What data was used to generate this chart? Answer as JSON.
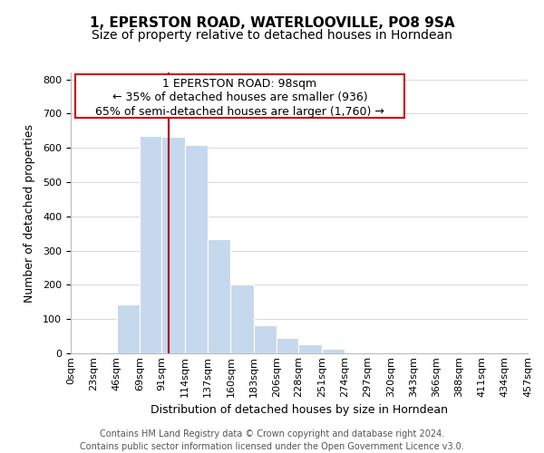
{
  "title": "1, EPERSTON ROAD, WATERLOOVILLE, PO8 9SA",
  "subtitle": "Size of property relative to detached houses in Horndean",
  "xlabel": "Distribution of detached houses by size in Horndean",
  "ylabel": "Number of detached properties",
  "bin_edges": [
    0,
    23,
    46,
    69,
    91,
    114,
    137,
    160,
    183,
    206,
    228,
    251,
    274,
    297,
    320,
    343,
    366,
    388,
    411,
    434,
    457
  ],
  "bin_labels": [
    "0sqm",
    "23sqm",
    "46sqm",
    "69sqm",
    "91sqm",
    "114sqm",
    "137sqm",
    "160sqm",
    "183sqm",
    "206sqm",
    "228sqm",
    "251sqm",
    "274sqm",
    "297sqm",
    "320sqm",
    "343sqm",
    "366sqm",
    "388sqm",
    "411sqm",
    "434sqm",
    "457sqm"
  ],
  "counts": [
    2,
    0,
    143,
    635,
    632,
    608,
    332,
    200,
    83,
    45,
    27,
    12,
    0,
    0,
    0,
    0,
    0,
    0,
    0,
    2
  ],
  "bar_color": "#c5d8ee",
  "bar_edgecolor": "white",
  "property_line_x": 98,
  "property_line_color": "#aa0000",
  "annotation_line1": "1 EPERSTON ROAD: 98sqm",
  "annotation_line2": "← 35% of detached houses are smaller (936)",
  "annotation_line3": "65% of semi-detached houses are larger (1,760) →",
  "ylim": [
    0,
    820
  ],
  "yticks": [
    0,
    100,
    200,
    300,
    400,
    500,
    600,
    700,
    800
  ],
  "background_color": "#ffffff",
  "grid_color": "#d8d8d8",
  "footer_text": "Contains HM Land Registry data © Crown copyright and database right 2024.\nContains public sector information licensed under the Open Government Licence v3.0.",
  "title_fontsize": 11,
  "subtitle_fontsize": 10,
  "xlabel_fontsize": 9,
  "ylabel_fontsize": 9,
  "annot_fontsize": 9,
  "tick_fontsize": 8,
  "footer_fontsize": 7
}
